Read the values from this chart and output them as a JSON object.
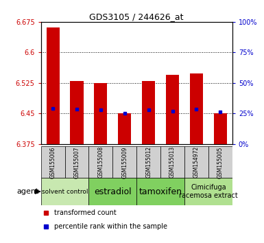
{
  "title": "GDS3105 / 244626_at",
  "samples": [
    "GSM155006",
    "GSM155007",
    "GSM155008",
    "GSM155009",
    "GSM155012",
    "GSM155013",
    "GSM154972",
    "GSM155005"
  ],
  "bar_values": [
    6.662,
    6.53,
    6.525,
    6.45,
    6.53,
    6.545,
    6.548,
    6.45
  ],
  "bar_base": 6.375,
  "percentile_values": [
    6.463,
    6.46,
    6.458,
    6.451,
    6.458,
    6.455,
    6.46,
    6.453
  ],
  "ylim": [
    6.375,
    6.675
  ],
  "yticks_left": [
    6.375,
    6.45,
    6.525,
    6.6,
    6.675
  ],
  "yticks_right": [
    0,
    25,
    50,
    75,
    100
  ],
  "groups": [
    {
      "label": "solvent control",
      "start": 0,
      "end": 2,
      "color": "#c8e8b0",
      "fontsize": 6.5
    },
    {
      "label": "estradiol",
      "start": 2,
      "end": 4,
      "color": "#80d060",
      "fontsize": 9
    },
    {
      "label": "tamoxifen",
      "start": 4,
      "end": 6,
      "color": "#80d060",
      "fontsize": 9
    },
    {
      "label": "Cimicifuga\nracemosa extract",
      "start": 6,
      "end": 8,
      "color": "#b0e090",
      "fontsize": 7
    }
  ],
  "xtick_bg": "#d0d0d0",
  "bar_color": "#cc0000",
  "dot_color": "#0000cc",
  "bg_color": "#ffffff",
  "left_tick_color": "#cc0000",
  "right_tick_color": "#0000cc",
  "agent_label": "agent",
  "legend_items": [
    {
      "label": "transformed count",
      "color": "#cc0000"
    },
    {
      "label": "percentile rank within the sample",
      "color": "#0000cc"
    }
  ]
}
